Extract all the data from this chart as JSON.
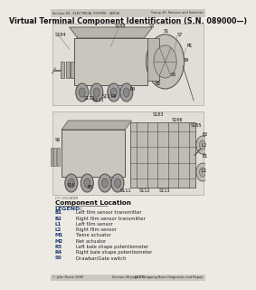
{
  "bg_color": "#edeae4",
  "header_bg": "#ccc8c0",
  "header_text_left": "Section 40 - ELECTRICAL SYSTEM - 4ER40",
  "header_text_right": "Group 20: Sensors and Switches",
  "title": "Virtual Terminal Component Identification (S.N. 089000—)",
  "footer_left": "© John Deere 2006",
  "footer_center": "Section 40 page 21",
  "footer_right": "678 Wrapping Baler Diagnostic and Repair",
  "figure_caption": "CC HG3498",
  "section_title": "Component Location",
  "legend_title": "LEGEND:",
  "legend_items": [
    [
      "B1",
      "Left film sensor transmitter"
    ],
    [
      "B2",
      "Right film sensor transmitter"
    ],
    [
      "L1",
      "Left film sensor"
    ],
    [
      "L2",
      "Right film sensor"
    ],
    [
      "M1",
      "Twine actuator"
    ],
    [
      "M2",
      "Net actuator"
    ],
    [
      "R3",
      "Left bale shape potentiometer"
    ],
    [
      "R4",
      "Right bale shape potentiometer"
    ],
    [
      "S0",
      "Drawbar/Gate switch"
    ]
  ],
  "diagram_bg": "#d8d4cc",
  "sketch_color": "#5a5650",
  "label_color": "#111111",
  "blue_color": "#1a3a6e"
}
